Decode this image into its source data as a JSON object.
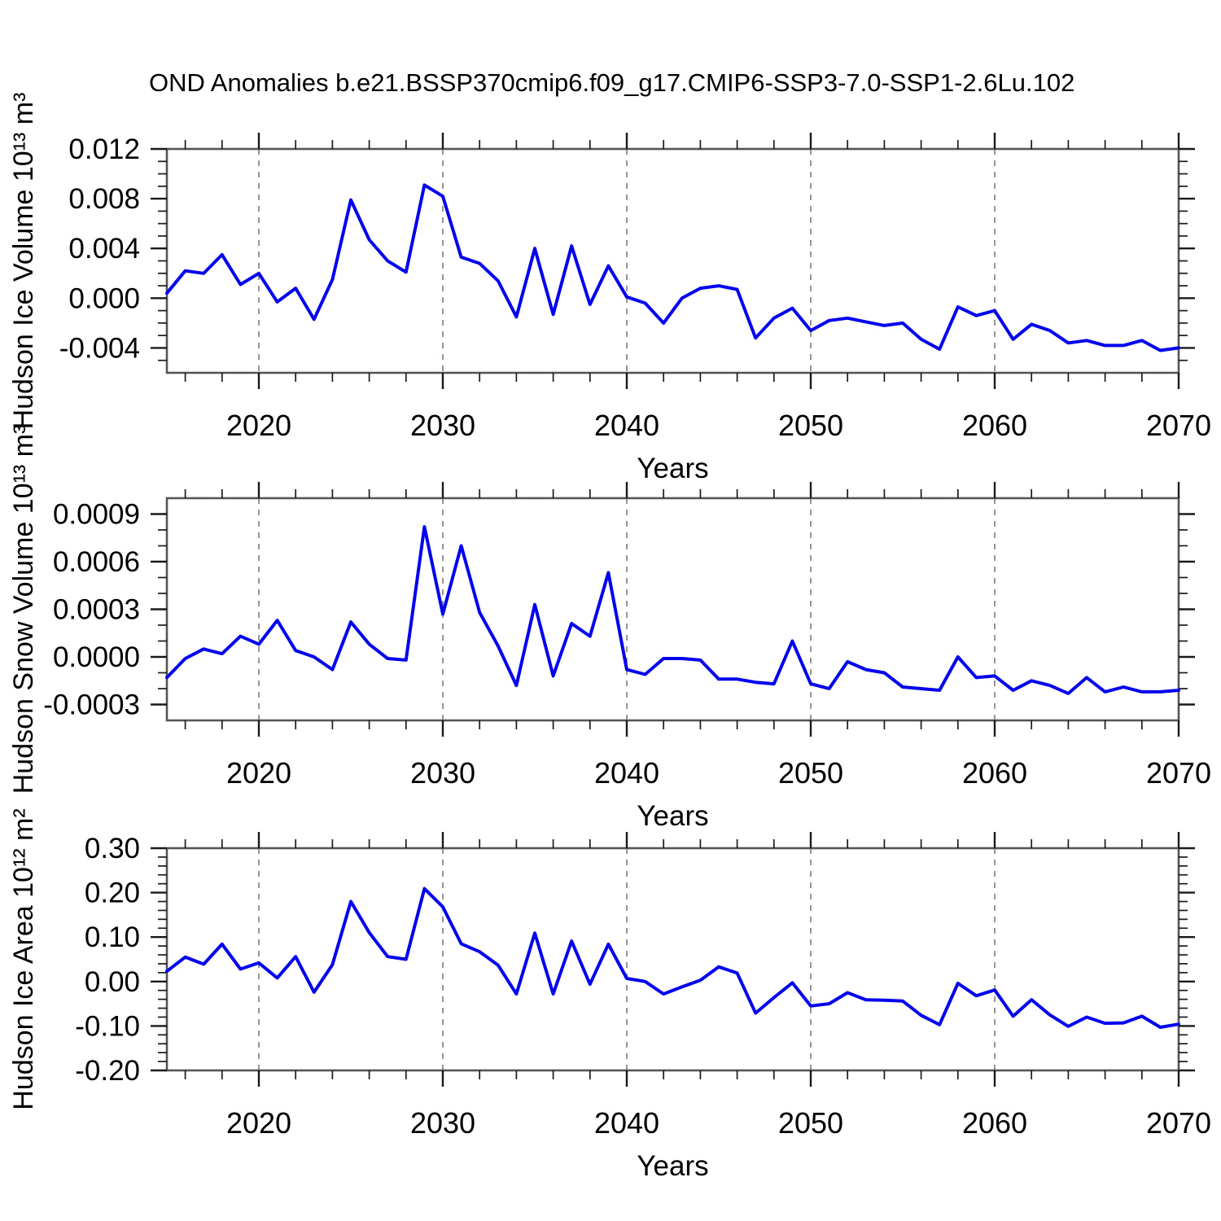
{
  "title": "OND Anomalies b.e21.BSSP370cmip6.f09_g17.CMIP6-SSP3-7.0-SSP1-2.6Lu.102",
  "style": {
    "line_color": "#0202ee",
    "grid_color": "#7d7d7d",
    "frame_color": "#555555",
    "tick_color": "#1a1a1a",
    "text_color": "#000000",
    "background": "#ffffff"
  },
  "chart_data": [
    {
      "id": "hudson-ice-volume",
      "type": "line",
      "ylabel": "Hudson Ice Volume 10¹³ m³",
      "xlabel": "Years",
      "xlim": [
        2015,
        2070
      ],
      "ylim": [
        -0.006,
        0.012
      ],
      "xticks": [
        2020,
        2030,
        2040,
        2050,
        2060,
        2070
      ],
      "xtick_labels": [
        "2020",
        "2030",
        "2040",
        "2050",
        "2060",
        "2070"
      ],
      "xtick_minor_step": 2,
      "grid_x": [
        2020,
        2030,
        2040,
        2050,
        2060
      ],
      "grid_style": "dashed",
      "legend": "none",
      "yticks": [
        0.012,
        0.008,
        0.004,
        0.0,
        -0.004
      ],
      "ytick_labels": [
        "0.012",
        "0.008",
        "0.004",
        "0.000",
        "-0.004"
      ],
      "ytick_minor_step": 0.001,
      "x": [
        2015,
        2016,
        2017,
        2018,
        2019,
        2020,
        2021,
        2022,
        2023,
        2024,
        2025,
        2026,
        2027,
        2028,
        2029,
        2030,
        2031,
        2032,
        2033,
        2034,
        2035,
        2036,
        2037,
        2038,
        2039,
        2040,
        2041,
        2042,
        2043,
        2044,
        2045,
        2046,
        2047,
        2048,
        2049,
        2050,
        2051,
        2052,
        2053,
        2054,
        2055,
        2056,
        2057,
        2058,
        2059,
        2060,
        2061,
        2062,
        2063,
        2064,
        2065,
        2066,
        2067,
        2068,
        2069,
        2070
      ],
      "values": [
        0.0004,
        0.0022,
        0.002,
        0.0035,
        0.0011,
        0.002,
        -0.0003,
        0.0008,
        -0.0017,
        0.0015,
        0.0079,
        0.0047,
        0.003,
        0.0021,
        0.0091,
        0.0082,
        0.0033,
        0.0028,
        0.0014,
        -0.0015,
        0.004,
        -0.0013,
        0.0042,
        -0.0005,
        0.0026,
        0.0001,
        -0.0004,
        -0.002,
        0.0,
        0.0008,
        0.001,
        0.0007,
        -0.0032,
        -0.0016,
        -0.0008,
        -0.0026,
        -0.0018,
        -0.0016,
        -0.0019,
        -0.0022,
        -0.002,
        -0.0033,
        -0.0041,
        -0.0007,
        -0.0014,
        -0.001,
        -0.0033,
        -0.0021,
        -0.0026,
        -0.0036,
        -0.0034,
        -0.0038,
        -0.0038,
        -0.0034,
        -0.0042,
        -0.004
      ]
    },
    {
      "id": "hudson-snow-volume",
      "type": "line",
      "ylabel": "Hudson Snow Volume 10¹³ m³",
      "xlabel": "Years",
      "xlim": [
        2015,
        2070
      ],
      "ylim": [
        -0.0004,
        0.001
      ],
      "xticks": [
        2020,
        2030,
        2040,
        2050,
        2060,
        2070
      ],
      "xtick_labels": [
        "2020",
        "2030",
        "2040",
        "2050",
        "2060",
        "2070"
      ],
      "xtick_minor_step": 2,
      "grid_x": [
        2020,
        2030,
        2040,
        2050,
        2060
      ],
      "grid_style": "dashed",
      "legend": "none",
      "yticks": [
        0.0009,
        0.0006,
        0.0003,
        0.0,
        -0.0003
      ],
      "ytick_labels": [
        "0.0009",
        "0.0006",
        "0.0003",
        "0.0000",
        "-0.0003"
      ],
      "ytick_minor_step": 0.0001,
      "x": [
        2015,
        2016,
        2017,
        2018,
        2019,
        2020,
        2021,
        2022,
        2023,
        2024,
        2025,
        2026,
        2027,
        2028,
        2029,
        2030,
        2031,
        2032,
        2033,
        2034,
        2035,
        2036,
        2037,
        2038,
        2039,
        2040,
        2041,
        2042,
        2043,
        2044,
        2045,
        2046,
        2047,
        2048,
        2049,
        2050,
        2051,
        2052,
        2053,
        2054,
        2055,
        2056,
        2057,
        2058,
        2059,
        2060,
        2061,
        2062,
        2063,
        2064,
        2065,
        2066,
        2067,
        2068,
        2069,
        2070
      ],
      "values": [
        -0.00013,
        -1e-05,
        5e-05,
        2e-05,
        0.00013,
        8e-05,
        0.00023,
        4e-05,
        0.0,
        -8e-05,
        0.00022,
        8e-05,
        -1e-05,
        -2e-05,
        0.00082,
        0.00027,
        0.0007,
        0.00028,
        7e-05,
        -0.00018,
        0.00033,
        -0.00012,
        0.00021,
        0.00013,
        0.00053,
        -8e-05,
        -0.00011,
        -1e-05,
        -1e-05,
        -2e-05,
        -0.00014,
        -0.00014,
        -0.00016,
        -0.00017,
        0.0001,
        -0.00017,
        -0.0002,
        -3e-05,
        -8e-05,
        -0.0001,
        -0.00019,
        -0.0002,
        -0.00021,
        0.0,
        -0.00013,
        -0.00012,
        -0.00021,
        -0.00015,
        -0.00018,
        -0.00023,
        -0.00013,
        -0.00022,
        -0.00019,
        -0.00022,
        -0.00022,
        -0.00021
      ]
    },
    {
      "id": "hudson-ice-area",
      "type": "line",
      "ylabel": "Hudson Ice Area 10¹² m²",
      "xlabel": "Years",
      "xlim": [
        2015,
        2070
      ],
      "ylim": [
        -0.2,
        0.3
      ],
      "xticks": [
        2020,
        2030,
        2040,
        2050,
        2060,
        2070
      ],
      "xtick_labels": [
        "2020",
        "2030",
        "2040",
        "2050",
        "2060",
        "2070"
      ],
      "xtick_minor_step": 2,
      "grid_x": [
        2020,
        2030,
        2040,
        2050,
        2060
      ],
      "grid_style": "dashed",
      "legend": "none",
      "yticks": [
        0.3,
        0.2,
        0.1,
        0.0,
        -0.1,
        -0.2
      ],
      "ytick_labels": [
        "0.30",
        "0.20",
        "0.10",
        "0.00",
        "-0.10",
        "-0.20"
      ],
      "ytick_minor_step": 0.02,
      "x": [
        2015,
        2016,
        2017,
        2018,
        2019,
        2020,
        2021,
        2022,
        2023,
        2024,
        2025,
        2026,
        2027,
        2028,
        2029,
        2030,
        2031,
        2032,
        2033,
        2034,
        2035,
        2036,
        2037,
        2038,
        2039,
        2040,
        2041,
        2042,
        2043,
        2044,
        2045,
        2046,
        2047,
        2048,
        2049,
        2050,
        2051,
        2052,
        2053,
        2054,
        2055,
        2056,
        2057,
        2058,
        2059,
        2060,
        2061,
        2062,
        2063,
        2064,
        2065,
        2066,
        2067,
        2068,
        2069,
        2070
      ],
      "values": [
        0.023,
        0.055,
        0.039,
        0.084,
        0.028,
        0.042,
        0.008,
        0.056,
        -0.024,
        0.038,
        0.18,
        0.11,
        0.056,
        0.05,
        0.209,
        0.168,
        0.085,
        0.067,
        0.037,
        -0.028,
        0.109,
        -0.028,
        0.091,
        -0.006,
        0.084,
        0.007,
        0.0,
        -0.028,
        -0.012,
        0.003,
        0.033,
        0.019,
        -0.071,
        -0.036,
        -0.003,
        -0.055,
        -0.05,
        -0.025,
        -0.041,
        -0.042,
        -0.044,
        -0.076,
        -0.097,
        -0.004,
        -0.032,
        -0.019,
        -0.078,
        -0.041,
        -0.075,
        -0.101,
        -0.08,
        -0.094,
        -0.093,
        -0.078,
        -0.103,
        -0.096
      ]
    }
  ]
}
